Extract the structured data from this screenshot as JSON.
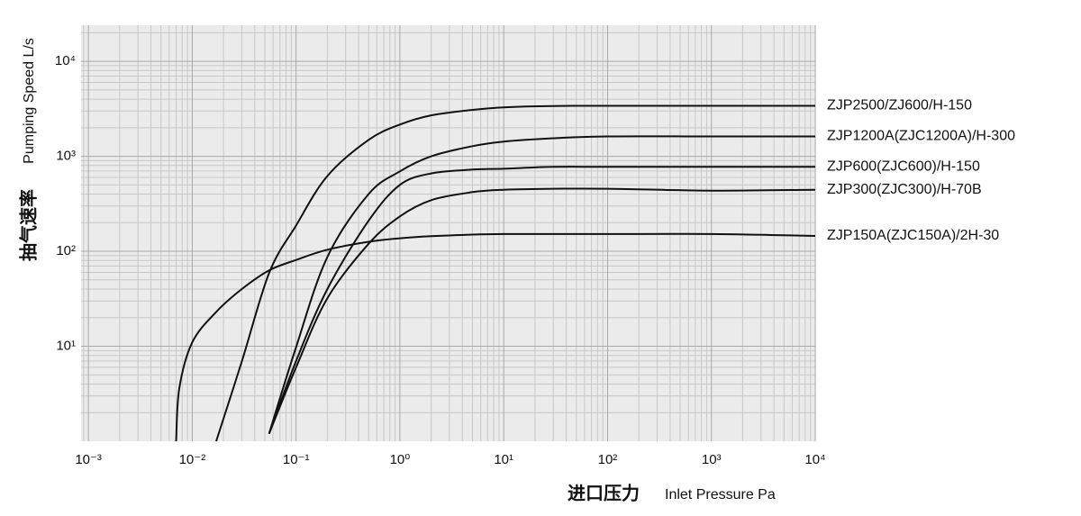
{
  "chart_data": {
    "type": "line",
    "log_x": true,
    "log_y": true,
    "grid": true,
    "minor_grid": true,
    "background": "#ebebeb",
    "y_title": "抽气速率",
    "y_subtitle": "Pumping Speed L/s",
    "x_title": "进口压力",
    "x_subtitle": "Inlet Pressure Pa",
    "x": [
      0.007,
      0.0075,
      0.01,
      0.017,
      0.03,
      0.055,
      0.1,
      0.2,
      0.5,
      1,
      2,
      5,
      10,
      30,
      100,
      1000,
      10000
    ],
    "xlim": [
      0.00085,
      10000
    ],
    "xticks": [
      {
        "value": 0.001,
        "label": "10⁻³"
      },
      {
        "value": 0.01,
        "label": "10⁻²"
      },
      {
        "value": 0.1,
        "label": "10⁻¹"
      },
      {
        "value": 1,
        "label": "10⁰"
      },
      {
        "value": 10,
        "label": "10¹"
      },
      {
        "value": 100,
        "label": "10²"
      },
      {
        "value": 1000,
        "label": "10³"
      },
      {
        "value": 10000,
        "label": "10⁴"
      }
    ],
    "ylim": [
      1,
      24000
    ],
    "yticks": [
      {
        "value": 10,
        "label": "10¹"
      },
      {
        "value": 100,
        "label": "10²"
      },
      {
        "value": 1000,
        "label": "10³"
      },
      {
        "value": 10000,
        "label": "10⁴"
      }
    ],
    "series": [
      {
        "name": "ZJP2500/ZJ600/H-150",
        "color": "#111111",
        "values": [
          null,
          null,
          null,
          1,
          6.9,
          59,
          187,
          620,
          1490,
          2160,
          2700,
          3080,
          3280,
          3390,
          3400,
          3400,
          3400
        ]
      },
      {
        "name": "ZJP1200A(ZJC1200A)/H-300",
        "color": "#111111",
        "values": [
          null,
          null,
          null,
          null,
          null,
          1.2,
          9.8,
          87,
          400,
          694,
          1000,
          1280,
          1430,
          1550,
          1620,
          1620,
          1620
        ]
      },
      {
        "name": "ZJP600(ZJC600)/H-150",
        "color": "#111111",
        "values": [
          null,
          null,
          null,
          null,
          null,
          1.2,
          7,
          40,
          210,
          500,
          660,
          725,
          740,
          775,
          775,
          775,
          775
        ]
      },
      {
        "name": "ZJP300(ZJC300)/H-70B",
        "color": "#111111",
        "values": [
          null,
          null,
          null,
          null,
          null,
          1.2,
          6,
          32,
          120,
          233,
          345,
          420,
          445,
          455,
          455,
          435,
          445
        ]
      },
      {
        "name": "ZJP150A(ZJC150A)/2H-30",
        "color": "#111111",
        "values": [
          1,
          3.6,
          11,
          23,
          40,
          63,
          81,
          104,
          126,
          137,
          144,
          150,
          152,
          152,
          152,
          152,
          145
        ]
      }
    ]
  }
}
